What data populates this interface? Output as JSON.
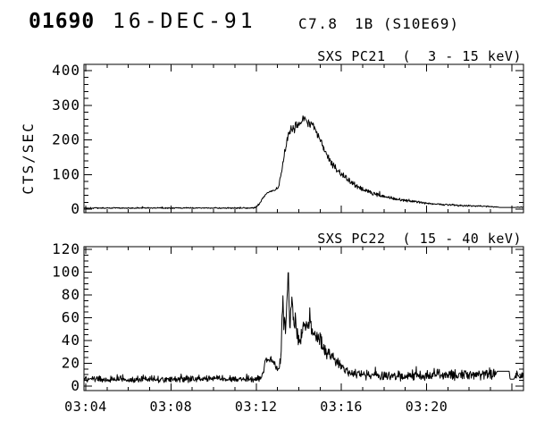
{
  "header": {
    "flare_number": "01690",
    "date": "16-DEC-91",
    "goes_class": "C7.8",
    "optical_importance": "1B (S10E69)"
  },
  "x_axis": {
    "tick_labels": [
      "03:04",
      "03:08",
      "03:12",
      "03:16",
      "03:20"
    ],
    "major_minutes": [
      0,
      4,
      8,
      12,
      16,
      20
    ],
    "minor_step_min": 1,
    "start_time": "03:04"
  },
  "line_color": "#000000",
  "background": "#ffffff",
  "chart_data": [
    {
      "type": "line",
      "series_name": "SXS PC21",
      "title": "SXS PC21  (  3 - 15 keV)",
      "ylabel": "CTS/SEC",
      "ylim": [
        0,
        400
      ],
      "yticks": [
        0,
        100,
        200,
        300,
        400
      ],
      "y_minor_step": 20,
      "grid": false,
      "x_unit": "minutes after 03:04 UT",
      "y_unit": "counts per second",
      "keypoints": [
        [
          -0.09,
          3.5
        ],
        [
          7.85,
          3.5
        ],
        [
          8.0,
          6
        ],
        [
          8.15,
          15
        ],
        [
          8.3,
          32
        ],
        [
          8.5,
          46
        ],
        [
          8.7,
          52
        ],
        [
          8.9,
          56
        ],
        [
          9.05,
          65
        ],
        [
          9.15,
          95
        ],
        [
          9.25,
          130
        ],
        [
          9.35,
          165
        ],
        [
          9.45,
          200
        ],
        [
          9.55,
          225
        ],
        [
          9.65,
          232
        ],
        [
          9.75,
          228
        ],
        [
          9.85,
          240
        ],
        [
          9.95,
          243
        ],
        [
          10.05,
          248
        ],
        [
          10.15,
          252
        ],
        [
          10.25,
          262
        ],
        [
          10.32,
          268
        ],
        [
          10.4,
          248
        ],
        [
          10.5,
          242
        ],
        [
          10.57,
          252
        ],
        [
          10.65,
          240
        ],
        [
          10.75,
          232
        ],
        [
          10.9,
          215
        ],
        [
          11.0,
          200
        ],
        [
          11.2,
          170
        ],
        [
          11.4,
          150
        ],
        [
          11.6,
          130
        ],
        [
          11.8,
          115
        ],
        [
          12.0,
          100
        ],
        [
          12.2,
          92
        ],
        [
          12.4,
          80
        ],
        [
          12.6,
          72
        ],
        [
          12.8,
          65
        ],
        [
          13.0,
          58
        ],
        [
          13.3,
          50
        ],
        [
          13.6,
          43
        ],
        [
          13.9,
          38
        ],
        [
          14.2,
          33
        ],
        [
          14.5,
          29
        ],
        [
          14.8,
          27
        ],
        [
          15.2,
          24
        ],
        [
          15.6,
          21
        ],
        [
          16.0,
          18
        ],
        [
          16.5,
          15
        ],
        [
          17.0,
          13
        ],
        [
          17.5,
          11
        ],
        [
          18.0,
          10
        ],
        [
          18.5,
          9
        ],
        [
          19.0,
          8
        ],
        [
          19.35,
          6
        ],
        [
          19.45,
          5
        ],
        [
          20.15,
          5
        ],
        [
          20.3,
          6
        ],
        [
          20.55,
          6
        ]
      ],
      "noise_amp": [
        [
          -0.09,
          2.2
        ],
        [
          7.9,
          2.2
        ],
        [
          8.9,
          3
        ],
        [
          9.1,
          6
        ],
        [
          9.4,
          12
        ],
        [
          9.7,
          16
        ],
        [
          10.8,
          16
        ],
        [
          11.3,
          13
        ],
        [
          12.0,
          11
        ],
        [
          12.8,
          9
        ],
        [
          13.6,
          7
        ],
        [
          14.5,
          5
        ],
        [
          15.5,
          4
        ],
        [
          16.5,
          3.5
        ],
        [
          17.5,
          3
        ],
        [
          18.5,
          2.6
        ],
        [
          19.25,
          2.4
        ],
        [
          19.4,
          0
        ],
        [
          20.15,
          0
        ],
        [
          20.25,
          1.5
        ],
        [
          20.55,
          1.5
        ]
      ]
    },
    {
      "type": "line",
      "series_name": "SXS PC22",
      "title": "SXS PC22  ( 15 - 40 keV)",
      "ylabel": "",
      "ylim": [
        0,
        120
      ],
      "yticks": [
        0,
        20,
        40,
        60,
        80,
        100,
        120
      ],
      "y_minor_step": 5,
      "grid": false,
      "x_unit": "minutes after 03:04 UT",
      "y_unit": "counts per second",
      "keypoints": [
        [
          -0.09,
          6
        ],
        [
          8.2,
          6
        ],
        [
          8.35,
          12
        ],
        [
          8.45,
          24
        ],
        [
          8.6,
          22
        ],
        [
          8.75,
          23
        ],
        [
          8.9,
          18
        ],
        [
          9.0,
          14
        ],
        [
          9.1,
          16
        ],
        [
          9.17,
          30
        ],
        [
          9.22,
          60
        ],
        [
          9.26,
          78
        ],
        [
          9.3,
          50
        ],
        [
          9.34,
          58
        ],
        [
          9.38,
          48
        ],
        [
          9.43,
          68
        ],
        [
          9.47,
          85
        ],
        [
          9.51,
          102
        ],
        [
          9.54,
          72
        ],
        [
          9.58,
          55
        ],
        [
          9.63,
          65
        ],
        [
          9.68,
          82
        ],
        [
          9.73,
          60
        ],
        [
          9.78,
          50
        ],
        [
          9.84,
          64
        ],
        [
          9.9,
          48
        ],
        [
          9.96,
          42
        ],
        [
          10.05,
          40
        ],
        [
          10.15,
          47
        ],
        [
          10.25,
          57
        ],
        [
          10.35,
          50
        ],
        [
          10.45,
          55
        ],
        [
          10.55,
          57
        ],
        [
          10.65,
          48
        ],
        [
          10.75,
          44
        ],
        [
          10.85,
          42
        ],
        [
          10.95,
          45
        ],
        [
          11.1,
          35
        ],
        [
          11.3,
          30
        ],
        [
          11.5,
          26
        ],
        [
          11.7,
          22
        ],
        [
          11.9,
          18
        ],
        [
          12.1,
          15
        ],
        [
          12.3,
          13
        ],
        [
          12.6,
          11
        ],
        [
          13.0,
          10
        ],
        [
          14.0,
          9
        ],
        [
          15.0,
          9
        ],
        [
          16.0,
          9.5
        ],
        [
          17.0,
          10
        ],
        [
          18.0,
          10
        ],
        [
          19.0,
          10.5
        ],
        [
          19.25,
          11
        ],
        [
          19.32,
          13
        ],
        [
          19.88,
          13
        ],
        [
          19.92,
          6
        ],
        [
          20.1,
          6
        ],
        [
          20.18,
          9
        ],
        [
          20.55,
          9
        ]
      ],
      "noise_amp": [
        [
          -0.09,
          3.5
        ],
        [
          8.2,
          3.5
        ],
        [
          8.45,
          3
        ],
        [
          9.05,
          4
        ],
        [
          9.2,
          7
        ],
        [
          9.6,
          9
        ],
        [
          10.0,
          8
        ],
        [
          10.9,
          8
        ],
        [
          11.5,
          6
        ],
        [
          12.2,
          5
        ],
        [
          13.0,
          5
        ],
        [
          14.0,
          5.5
        ],
        [
          19.15,
          5.5
        ],
        [
          19.3,
          0
        ],
        [
          20.12,
          0
        ],
        [
          20.2,
          4
        ],
        [
          20.55,
          4
        ]
      ]
    }
  ]
}
